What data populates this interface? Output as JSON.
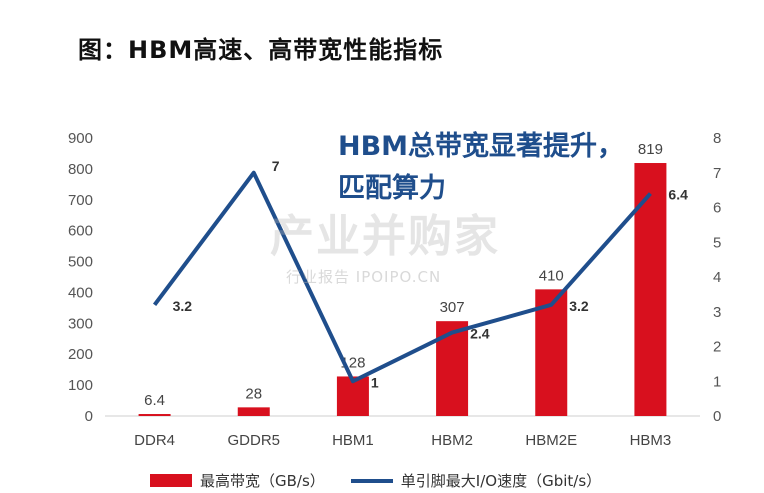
{
  "title": "图：HBM高速、高带宽性能指标",
  "annotation": "HBM总带宽显著提升，匹配算力",
  "watermark": {
    "main": "产业并购家",
    "sub": "行业报告 IPOIPO.CN"
  },
  "colors": {
    "bar": "#d8101e",
    "line": "#1f4e8c"
  },
  "chart_data": {
    "type": "bar",
    "categories": [
      "DDR4",
      "GDDR5",
      "HBM1",
      "HBM2",
      "HBM2E",
      "HBM3"
    ],
    "series": [
      {
        "name": "最高带宽（GB/s）",
        "type": "bar",
        "axis": "left",
        "values": [
          6.4,
          28,
          128,
          307,
          410,
          819
        ]
      },
      {
        "name": "单引脚最大I/O速度（Gbit/s）",
        "type": "line",
        "axis": "right",
        "values": [
          3.2,
          7,
          1,
          2.4,
          3.2,
          6.4
        ]
      }
    ],
    "left_axis": {
      "min": 0,
      "max": 900,
      "ticks": [
        0,
        100,
        200,
        300,
        400,
        500,
        600,
        700,
        800,
        900
      ]
    },
    "right_axis": {
      "min": 0,
      "max": 8,
      "ticks": [
        0,
        1,
        2,
        3,
        4,
        5,
        6,
        7,
        8
      ]
    },
    "grid": false,
    "legend_position": "bottom"
  }
}
